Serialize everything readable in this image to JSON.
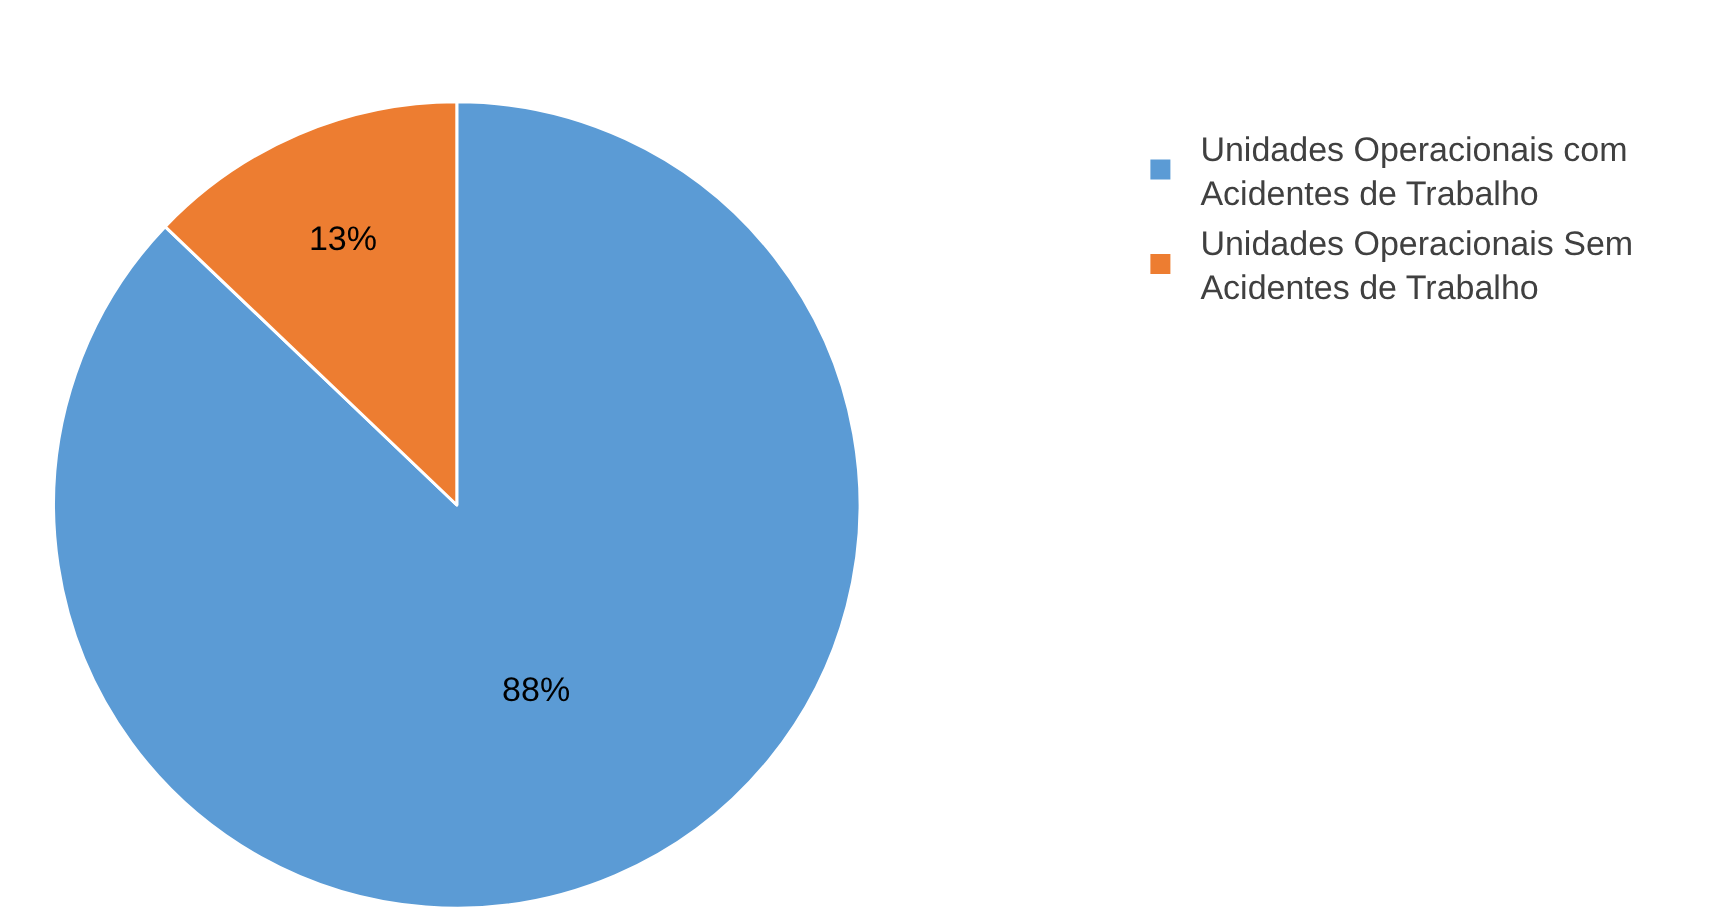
{
  "chart_data": {
    "type": "pie",
    "categories": [
      "Unidades Operacionais com Acidentes de Trabalho",
      "Unidades Operacionais Sem Acidentes de Trabalho"
    ],
    "values": [
      88,
      13
    ],
    "value_labels": [
      "88%",
      "13%"
    ],
    "colors": [
      "#5b9bd5",
      "#ed7d31"
    ],
    "legend": "top right"
  }
}
